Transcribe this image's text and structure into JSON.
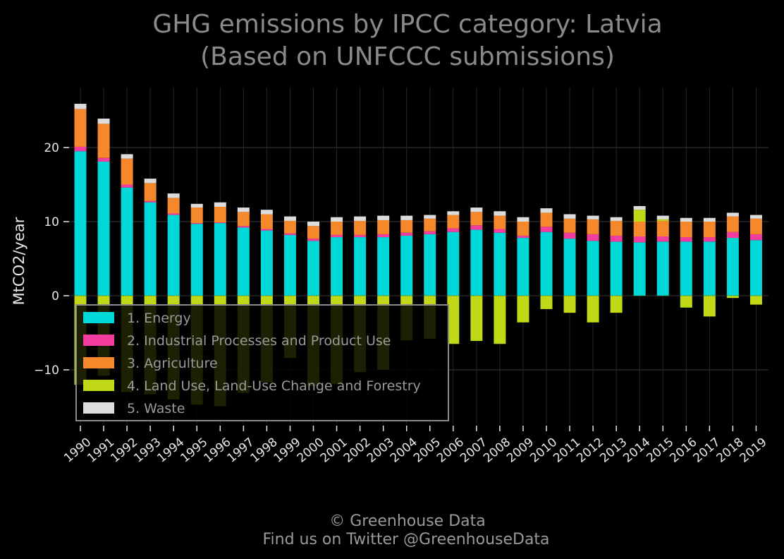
{
  "chart_data": {
    "type": "bar",
    "stacked": true,
    "title_lines": [
      "GHG emissions by IPCC category: Latvia",
      "(Based on UNFCCC submissions)"
    ],
    "ylabel": "MtCO2/year",
    "ylim": [
      -17,
      27
    ],
    "yticks": [
      20,
      10,
      0,
      -10
    ],
    "ytick_labels": [
      "20",
      "10",
      "0",
      "−​10"
    ],
    "grid": true,
    "legend_position": "lower-left",
    "categories": [
      "1990",
      "1991",
      "1992",
      "1993",
      "1994",
      "1995",
      "1996",
      "1997",
      "1998",
      "1999",
      "2000",
      "2001",
      "2002",
      "2003",
      "2004",
      "2005",
      "2006",
      "2007",
      "2008",
      "2009",
      "2010",
      "2011",
      "2012",
      "2013",
      "2014",
      "2015",
      "2016",
      "2017",
      "2018",
      "2019"
    ],
    "series": [
      {
        "name": "1. Energy",
        "color": "#00d8d8",
        "values": [
          19.5,
          18.1,
          14.6,
          12.6,
          10.9,
          9.7,
          9.8,
          9.2,
          8.8,
          8.2,
          7.4,
          7.9,
          7.9,
          7.9,
          8.1,
          8.3,
          8.6,
          8.9,
          8.5,
          7.8,
          8.6,
          7.7,
          7.4,
          7.3,
          7.2,
          7.3,
          7.3,
          7.3,
          7.8,
          7.5
        ]
      },
      {
        "name": "2. Industrial Processes and Product Use",
        "color": "#f23ca0",
        "values": [
          0.6,
          0.5,
          0.4,
          0.2,
          0.2,
          0.1,
          0.1,
          0.2,
          0.2,
          0.2,
          0.3,
          0.3,
          0.3,
          0.4,
          0.4,
          0.4,
          0.5,
          0.6,
          0.5,
          0.3,
          0.7,
          0.8,
          0.9,
          0.8,
          0.8,
          0.7,
          0.6,
          0.6,
          0.8,
          0.8
        ]
      },
      {
        "name": "3. Agriculture",
        "color": "#f5882a",
        "values": [
          5.1,
          4.6,
          3.5,
          2.4,
          2.1,
          2.1,
          2.1,
          1.9,
          2.0,
          1.7,
          1.7,
          1.8,
          1.9,
          1.9,
          1.7,
          1.7,
          1.8,
          1.8,
          1.8,
          1.9,
          1.9,
          1.9,
          2.0,
          2.0,
          2.0,
          2.1,
          2.1,
          2.1,
          2.1,
          2.1
        ]
      },
      {
        "name": "4. Land Use, Land-Use Change and Forestry",
        "color": "#c0d815",
        "values": [
          -12.0,
          -10.8,
          -13.0,
          -13.3,
          -14.0,
          -14.7,
          -14.9,
          -13.1,
          -11.7,
          -8.4,
          -12.2,
          -11.9,
          -10.3,
          -10.0,
          -6.0,
          -5.8,
          -6.5,
          -6.1,
          -6.5,
          -3.6,
          -1.8,
          -2.3,
          -3.6,
          -2.3,
          1.6,
          0.2,
          -1.6,
          -2.8,
          -0.3,
          -1.2
        ]
      },
      {
        "name": "5. Waste",
        "color": "#dcdcdc",
        "values": [
          0.7,
          0.7,
          0.6,
          0.6,
          0.6,
          0.5,
          0.6,
          0.6,
          0.6,
          0.6,
          0.6,
          0.6,
          0.6,
          0.6,
          0.6,
          0.5,
          0.5,
          0.6,
          0.6,
          0.6,
          0.6,
          0.6,
          0.5,
          0.5,
          0.5,
          0.5,
          0.5,
          0.5,
          0.5,
          0.5
        ]
      }
    ],
    "credit_lines": [
      "© Greenhouse Data",
      "Find us on Twitter @GreenhouseData"
    ]
  }
}
